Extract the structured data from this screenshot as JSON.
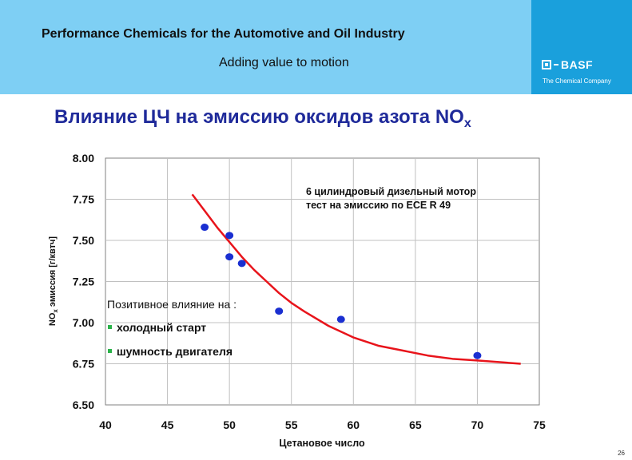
{
  "header": {
    "title": "Performance Chemicals for the Automotive and Oil Industry",
    "subtitle": "Adding value to motion",
    "brand_name": "BASF",
    "brand_tagline": "The Chemical Company"
  },
  "slide": {
    "title_main": "Влияние ЦЧ на эмиссию оксидов азота NO",
    "title_sub": "x",
    "page_number": "26"
  },
  "chart_data": {
    "type": "scatter",
    "xlabel": "Цетановое число",
    "ylabel_prefix": "NO",
    "ylabel_sub": "x",
    "ylabel_suffix": " эмиссия [г/квтч]",
    "xlim": [
      40,
      75
    ],
    "ylim": [
      6.5,
      8.0
    ],
    "x_ticks": [
      "40",
      "45",
      "50",
      "55",
      "60",
      "65",
      "70",
      "75"
    ],
    "y_ticks": [
      "6.50",
      "6.75",
      "7.00",
      "7.25",
      "7.50",
      "7.75",
      "8.00"
    ],
    "grid": true,
    "points": [
      {
        "x": 48,
        "y": 7.58
      },
      {
        "x": 50,
        "y": 7.53
      },
      {
        "x": 50,
        "y": 7.4
      },
      {
        "x": 51,
        "y": 7.36
      },
      {
        "x": 54,
        "y": 7.07
      },
      {
        "x": 59,
        "y": 7.02
      },
      {
        "x": 70,
        "y": 6.8
      }
    ],
    "trend_line": [
      {
        "x": 47,
        "y": 7.78
      },
      {
        "x": 48,
        "y": 7.68
      },
      {
        "x": 49,
        "y": 7.58
      },
      {
        "x": 50,
        "y": 7.49
      },
      {
        "x": 51,
        "y": 7.4
      },
      {
        "x": 52,
        "y": 7.32
      },
      {
        "x": 53,
        "y": 7.25
      },
      {
        "x": 54,
        "y": 7.18
      },
      {
        "x": 55,
        "y": 7.12
      },
      {
        "x": 56,
        "y": 7.07
      },
      {
        "x": 58,
        "y": 6.98
      },
      {
        "x": 60,
        "y": 6.91
      },
      {
        "x": 62,
        "y": 6.86
      },
      {
        "x": 64,
        "y": 6.83
      },
      {
        "x": 66,
        "y": 6.8
      },
      {
        "x": 68,
        "y": 6.78
      },
      {
        "x": 70,
        "y": 6.77
      },
      {
        "x": 73.5,
        "y": 6.75
      }
    ],
    "annotation_engine": [
      "6 цилиндровый дизельный мотор",
      "тест на эмиссию по ECE R 49"
    ],
    "annotation_effect": {
      "heading": "Позитивное влияние на :",
      "items": [
        "холодный старт",
        "шумность двигателя"
      ]
    },
    "colors": {
      "points": "#1a2fd1",
      "trend": "#e8141b",
      "grid": "#c0c0c0",
      "bullet": "#2bb34a"
    }
  }
}
